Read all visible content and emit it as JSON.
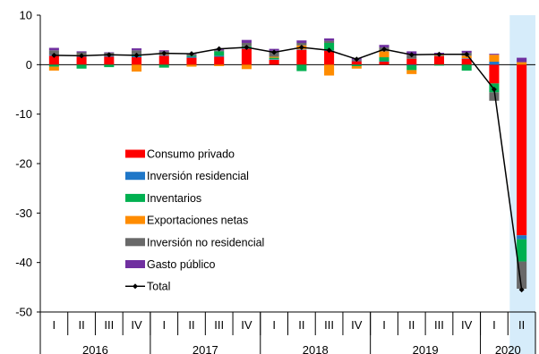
{
  "chart_data": {
    "type": "bar",
    "title": "",
    "stacked": true,
    "ylim": [
      -50,
      10
    ],
    "yticks": [
      10,
      0,
      -10,
      -20,
      -30,
      -40,
      -50
    ],
    "quarter_labels": [
      "I",
      "II",
      "III",
      "IV",
      "I",
      "II",
      "III",
      "IV",
      "I",
      "II",
      "III",
      "IV",
      "I",
      "II",
      "III",
      "IV",
      "I",
      "II"
    ],
    "years": [
      {
        "label": "2016",
        "quarters": 4
      },
      {
        "label": "2017",
        "quarters": 4
      },
      {
        "label": "2018",
        "quarters": 4
      },
      {
        "label": "2019",
        "quarters": 4
      },
      {
        "label": "2020",
        "quarters": 2
      }
    ],
    "highlight": {
      "from_index": 17,
      "to_index": 17,
      "color": "#d6ecfa"
    },
    "series": [
      {
        "name": "Consumo privado",
        "color": "#ff0000",
        "values": [
          1.8,
          1.6,
          1.6,
          1.5,
          1.8,
          1.4,
          1.6,
          3.2,
          1.0,
          3.0,
          2.8,
          0.7,
          0.6,
          1.2,
          1.7,
          1.2,
          -3.8,
          -34.5
        ]
      },
      {
        "name": "Inversión residencial",
        "color": "#1f77c8",
        "values": [
          0.2,
          0.2,
          0.2,
          0.2,
          0.2,
          0.2,
          0.2,
          0.1,
          0.1,
          0.1,
          0.1,
          0.1,
          0.1,
          -0.1,
          0.1,
          0.1,
          0.6,
          -0.8
        ]
      },
      {
        "name": "Inventarios",
        "color": "#00b050",
        "values": [
          -0.4,
          -0.8,
          -0.5,
          0.4,
          -0.6,
          0.2,
          0.9,
          0.4,
          0.3,
          -1.3,
          1.5,
          -0.3,
          0.8,
          -1.0,
          -0.2,
          -1.2,
          -1.8,
          -4.5
        ]
      },
      {
        "name": "Exportaciones netas",
        "color": "#ff8c00",
        "values": [
          -0.8,
          0.2,
          0.2,
          -1.4,
          0.2,
          -0.4,
          -0.3,
          -0.9,
          0.2,
          0.8,
          -2.2,
          -0.5,
          1.2,
          -0.8,
          0.2,
          0.5,
          1.4,
          0.5
        ]
      },
      {
        "name": "Inversión no residencial",
        "color": "#696969",
        "values": [
          0.9,
          0.5,
          0.4,
          0.8,
          0.5,
          0.3,
          0.2,
          0.7,
          1.2,
          0.5,
          0.4,
          0.2,
          0.8,
          0.8,
          0.2,
          0.6,
          -1.7,
          -5.5
        ]
      },
      {
        "name": "Gasto público",
        "color": "#7030a0",
        "values": [
          0.5,
          0.2,
          0.1,
          0.4,
          0.2,
          0.1,
          0.2,
          0.6,
          0.4,
          0.5,
          0.5,
          0.3,
          0.5,
          0.7,
          0.2,
          0.4,
          0.2,
          0.9
        ]
      }
    ],
    "line": {
      "name": "Total",
      "color": "#000000",
      "values": [
        1.9,
        1.8,
        2.0,
        1.9,
        2.3,
        2.2,
        3.2,
        3.5,
        2.5,
        3.5,
        2.9,
        1.1,
        3.1,
        2.0,
        2.1,
        2.1,
        -5.0,
        -45.5
      ]
    },
    "legend": [
      "Consumo privado",
      "Inversión residencial",
      "Inventarios",
      "Exportaciones netas",
      "Inversión no residencial",
      "Gasto público",
      "Total"
    ],
    "legend_position": "center-left"
  }
}
